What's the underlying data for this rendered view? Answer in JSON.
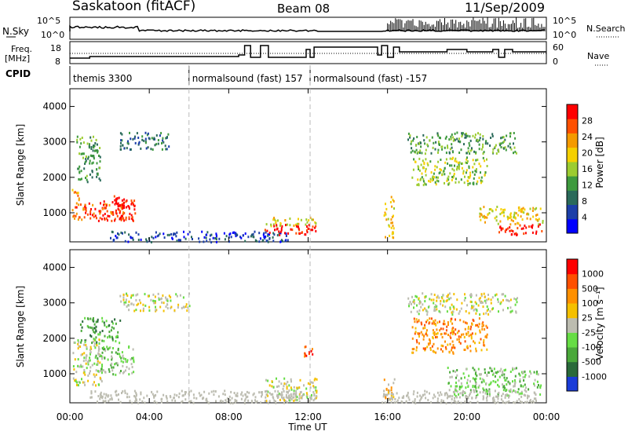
{
  "header": {
    "station": "Saskatoon (fitACF)",
    "beam": "Beam 08",
    "date": "11/Sep/2009"
  },
  "summary_panel": {
    "left_label_1": "N.Sky",
    "left_label_2a": "Freq.",
    "left_label_2b": "[MHz]",
    "left_label_3": "CPID",
    "right_label_1": "N.Search",
    "right_label_2": "Nave",
    "nsky_ticks": [
      "10^5",
      "10^0"
    ],
    "nsearch_ticks": [
      "10^5",
      "10^0"
    ],
    "freq_ticks": [
      "18",
      "8"
    ],
    "nave_ticks": [
      "60",
      "0"
    ],
    "cpid_segments": [
      {
        "label": "themis 3300",
        "start_hour": 0
      },
      {
        "label": "normalsound (fast) 157",
        "start_hour": 6
      },
      {
        "label": "normalsound (fast) -157",
        "start_hour": 12.1
      }
    ]
  },
  "time_axis": {
    "label": "Time UT",
    "ticks": [
      "00:00",
      "04:00",
      "08:00",
      "12:00",
      "16:00",
      "20:00",
      "00:00"
    ]
  },
  "power_panel": {
    "ylabel": "Slant Range [km]",
    "yticks": [
      "1000",
      "2000",
      "3000",
      "4000"
    ],
    "colorbar_label": "Power [dB]",
    "colorbar_ticks": [
      "4",
      "8",
      "12",
      "16",
      "20",
      "24",
      "28"
    ]
  },
  "velocity_panel": {
    "ylabel": "Slant Range [km]",
    "yticks": [
      "1000",
      "2000",
      "3000",
      "4000"
    ],
    "colorbar_label": "Velocity [m s⁻¹]",
    "colorbar_ticks": [
      "1000",
      "500",
      "100",
      "25",
      "-25",
      "-100",
      "-500",
      "-1000"
    ]
  },
  "colors": {
    "power_scale": [
      "#0000ff",
      "#1c3fa8",
      "#2a6a5a",
      "#3e9a3e",
      "#9ccc30",
      "#f5d000",
      "#f59a00",
      "#ff5000",
      "#ff0000"
    ],
    "velocity_scale": [
      "#1a3cd8",
      "#2a6a3a",
      "#4aa83a",
      "#66dd44",
      "#bcbcb0",
      "#f5c000",
      "#ff9000",
      "#ff5000",
      "#ff0000"
    ],
    "gray_scatter": "#bcbcb0",
    "dashed_line": "#bbbbbb"
  },
  "chart_data": [
    {
      "type": "heatmap",
      "name": "Power",
      "x_range_hours": [
        0,
        24
      ],
      "y_range_km": [
        180,
        4500
      ],
      "color_range_db": [
        0,
        30
      ],
      "regions": [
        {
          "t": [
            0.1,
            0.5
          ],
          "r": [
            1350,
            1700
          ],
          "level": 6
        },
        {
          "t": [
            0.1,
            2.8
          ],
          "r": [
            800,
            1300
          ],
          "level": 7
        },
        {
          "t": [
            1.5,
            3.3
          ],
          "r": [
            800,
            1400
          ],
          "level": 8
        },
        {
          "t": [
            2.2,
            2.8
          ],
          "r": [
            1000,
            1500
          ],
          "level": 8
        },
        {
          "t": [
            0.3,
            1.5
          ],
          "r": [
            1900,
            3200
          ],
          "level": 3
        },
        {
          "t": [
            2.5,
            5.0
          ],
          "r": [
            2800,
            3300
          ],
          "level": 2
        },
        {
          "t": [
            2.0,
            11.0
          ],
          "r": [
            200,
            500
          ],
          "level": 1
        },
        {
          "t": [
            9.8,
            12.4
          ],
          "r": [
            650,
            900
          ],
          "level": 5
        },
        {
          "t": [
            9.8,
            12.4
          ],
          "r": [
            400,
            700
          ],
          "level": 8
        },
        {
          "t": [
            15.8,
            16.3
          ],
          "r": [
            300,
            1500
          ],
          "level": 5
        },
        {
          "t": [
            17.2,
            21.0
          ],
          "r": [
            1800,
            2600
          ],
          "level": 4
        },
        {
          "t": [
            20.5,
            23.8
          ],
          "r": [
            700,
            1200
          ],
          "level": 5
        },
        {
          "t": [
            21.5,
            23.8
          ],
          "r": [
            400,
            700
          ],
          "level": 8
        },
        {
          "t": [
            17.0,
            22.5
          ],
          "r": [
            2700,
            3300
          ],
          "level": 3
        }
      ]
    },
    {
      "type": "heatmap",
      "name": "Velocity",
      "x_range_hours": [
        0,
        24
      ],
      "y_range_km": [
        180,
        4500
      ],
      "color_range_ms": [
        -1000,
        1000
      ],
      "regions": [
        {
          "t": [
            0.1,
            1.6
          ],
          "r": [
            700,
            2000
          ],
          "level": 4
        },
        {
          "t": [
            1.2,
            3.3
          ],
          "r": [
            1000,
            1800
          ],
          "level": 3
        },
        {
          "t": [
            0.5,
            2.5
          ],
          "r": [
            1900,
            2600
          ],
          "level": 2
        },
        {
          "t": [
            2.5,
            6.0
          ],
          "r": [
            2800,
            3300
          ],
          "level": 4
        },
        {
          "t": [
            9.8,
            12.4
          ],
          "r": [
            250,
            900
          ],
          "level": 4
        },
        {
          "t": [
            11.5,
            12.2
          ],
          "r": [
            1500,
            1800
          ],
          "level": 7
        },
        {
          "t": [
            15.8,
            16.4
          ],
          "r": [
            300,
            900
          ],
          "level": 5
        },
        {
          "t": [
            17.2,
            21.0
          ],
          "r": [
            1600,
            2600
          ],
          "level": 6
        },
        {
          "t": [
            17.0,
            22.5
          ],
          "r": [
            2700,
            3300
          ],
          "level": 4
        },
        {
          "t": [
            19.0,
            23.8
          ],
          "r": [
            400,
            1200
          ],
          "level": 3
        }
      ]
    }
  ]
}
